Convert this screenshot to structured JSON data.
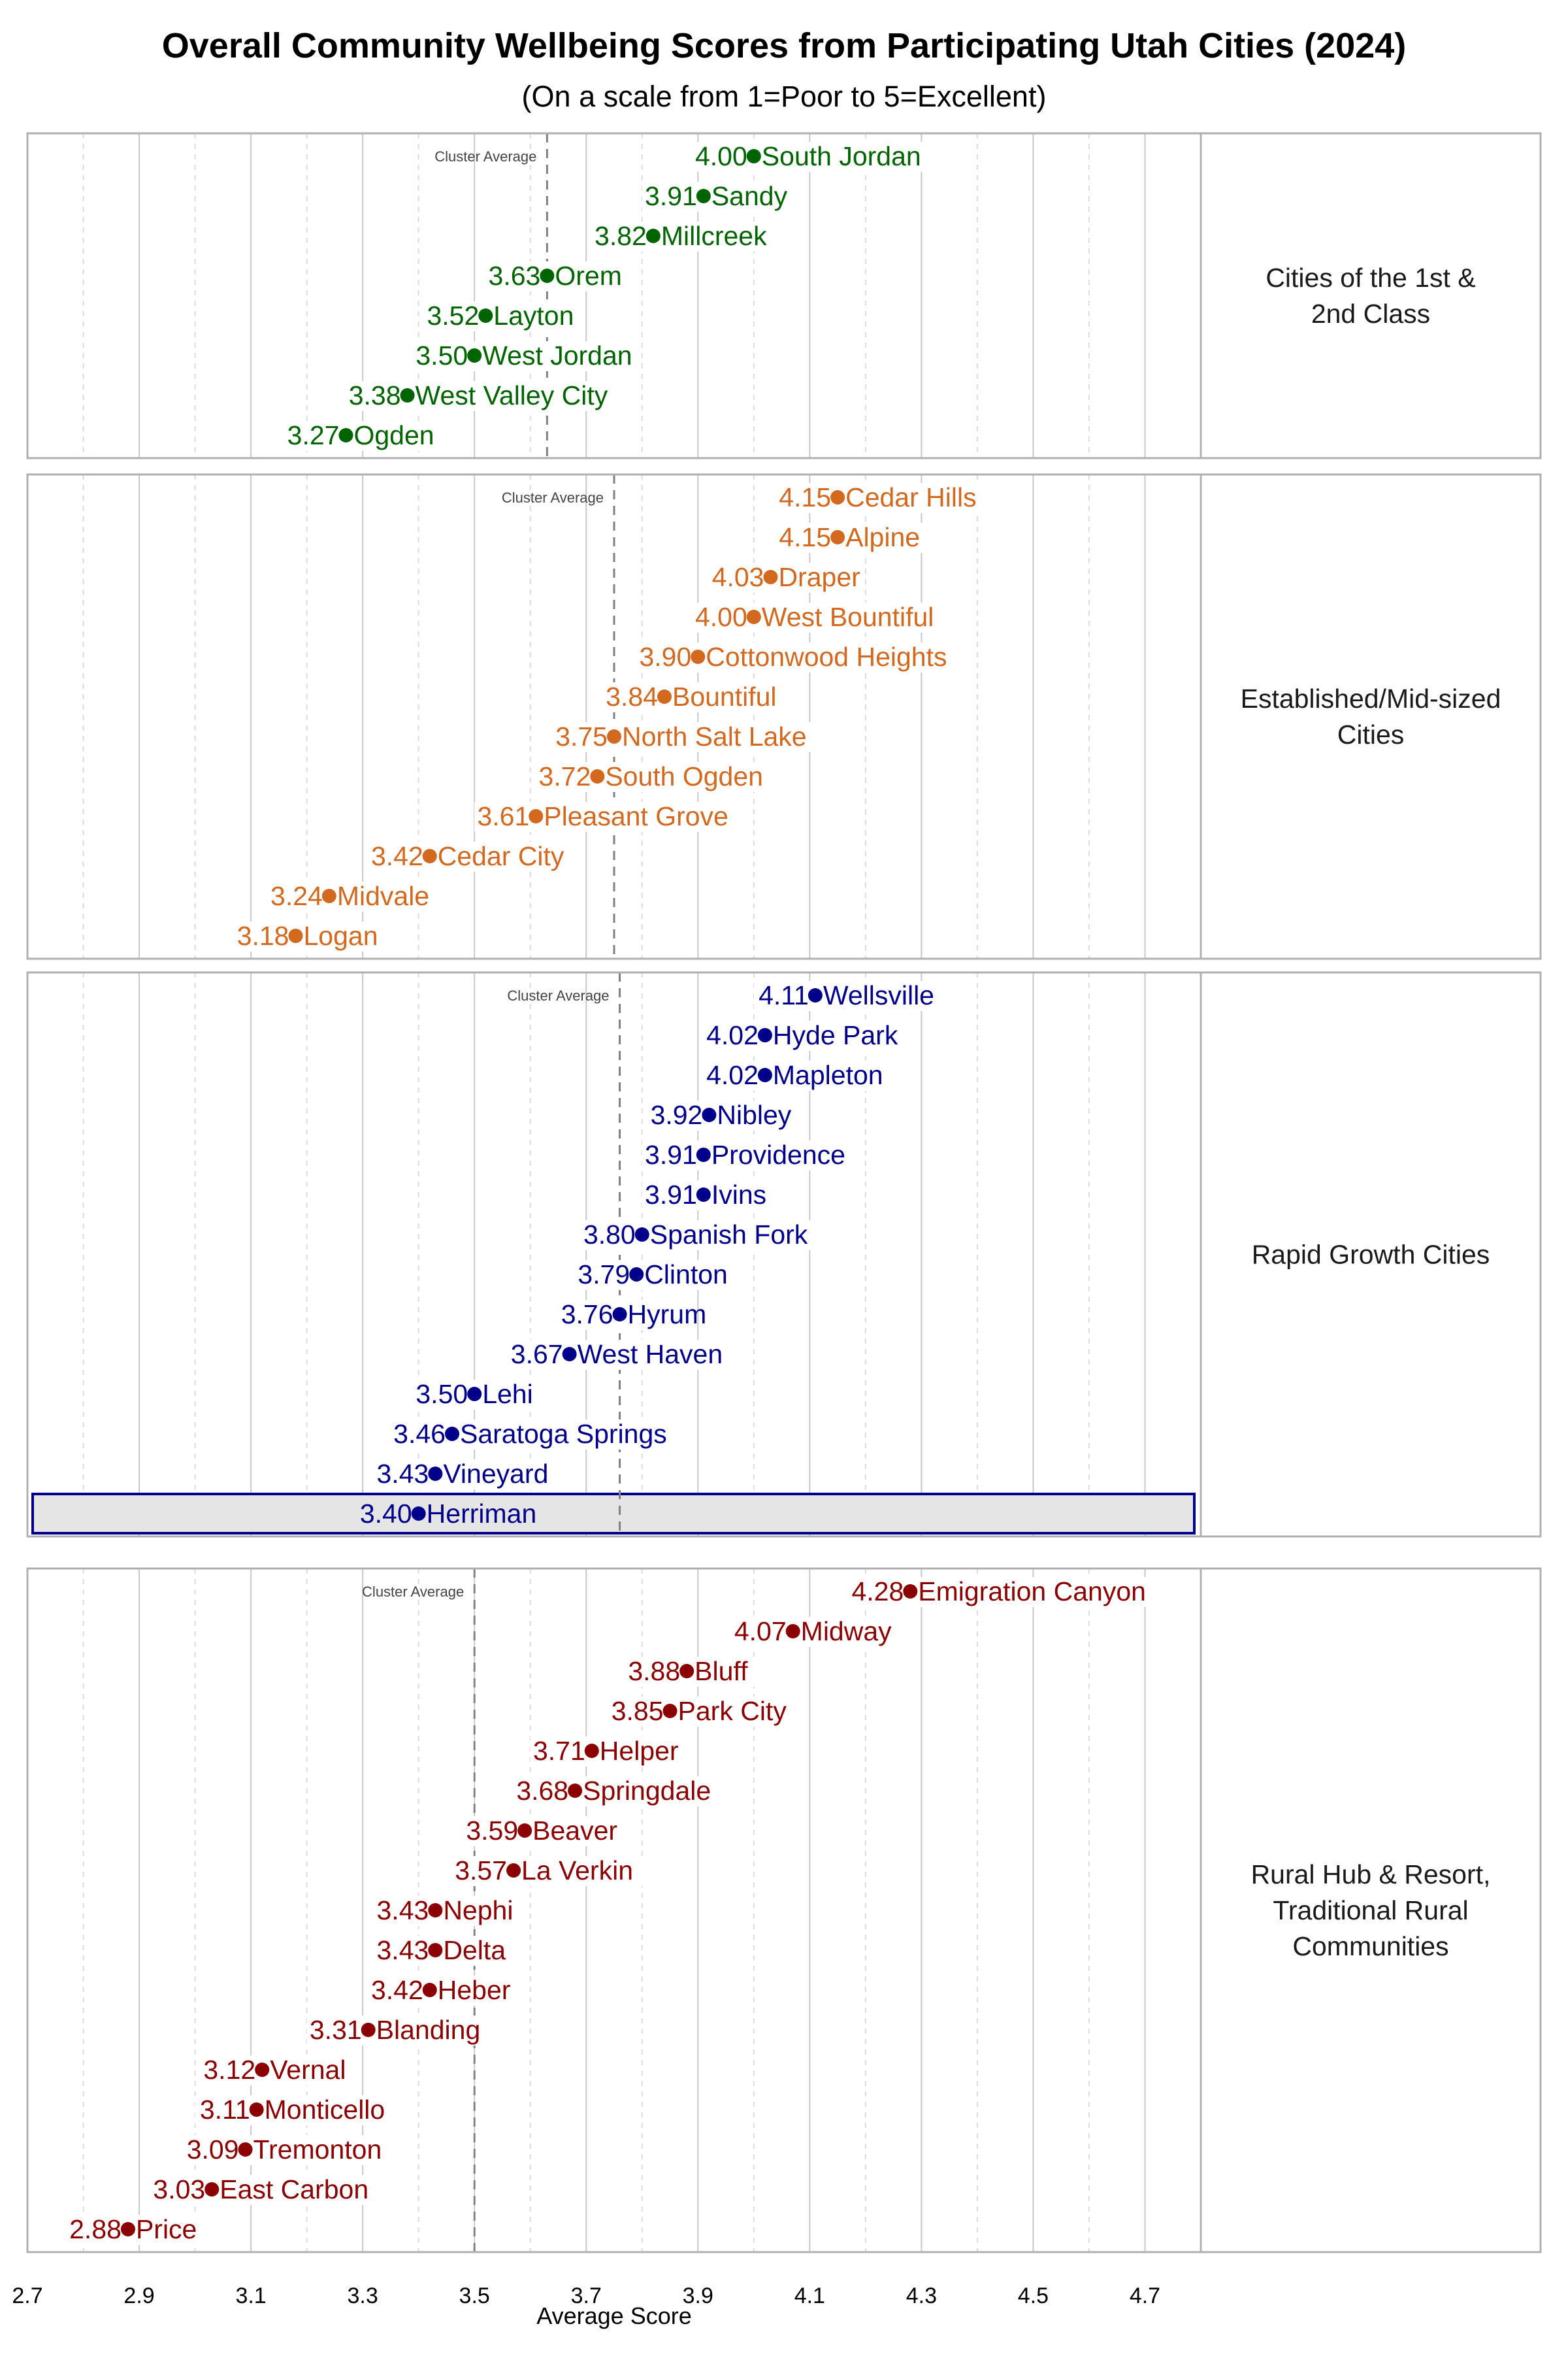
{
  "chart_data": {
    "type": "dot",
    "title": "Overall Community Wellbeing Scores from Participating Utah Cities (2024)",
    "subtitle": "(On a scale from 1=Poor to 5=Excellent)",
    "xlabel": "Average Score",
    "xlim": [
      2.7,
      4.8
    ],
    "xticks": [
      "2.7",
      "2.9",
      "3.1",
      "3.3",
      "3.5",
      "3.7",
      "3.9",
      "4.1",
      "4.3",
      "4.5",
      "4.7"
    ],
    "grid": true,
    "reference_label": "Cluster Average",
    "highlight": "Herriman",
    "highlight_colors": {
      "fill": "#e5e5e5",
      "border": "#00008B"
    },
    "panels": [
      {
        "name": "Cities of the 1st & 2nd Class",
        "name_lines": [
          "Cities of the 1st &",
          "2nd Class"
        ],
        "color": "#006400",
        "cluster_average": 3.63,
        "cities": [
          "South Jordan",
          "Sandy",
          "Millcreek",
          "Orem",
          "Layton",
          "West Jordan",
          "West Valley City",
          "Ogden"
        ],
        "values": [
          4.0,
          3.91,
          3.82,
          3.63,
          3.52,
          3.5,
          3.38,
          3.27
        ]
      },
      {
        "name": "Established/Mid-sized Cities",
        "name_lines": [
          "Established/Mid-sized",
          "Cities"
        ],
        "color": "#D2691E",
        "cluster_average": 3.75,
        "cities": [
          "Cedar Hills",
          "Alpine",
          "Draper",
          "West Bountiful",
          "Cottonwood Heights",
          "Bountiful",
          "North Salt Lake",
          "South Ogden",
          "Pleasant Grove",
          "Cedar City",
          "Midvale",
          "Logan"
        ],
        "values": [
          4.15,
          4.15,
          4.03,
          4.0,
          3.9,
          3.84,
          3.75,
          3.72,
          3.61,
          3.42,
          3.24,
          3.18
        ]
      },
      {
        "name": "Rapid Growth Cities",
        "name_lines": [
          "Rapid Growth Cities"
        ],
        "color": "#00008B",
        "cluster_average": 3.76,
        "cities": [
          "Wellsville",
          "Hyde Park",
          "Mapleton",
          "Nibley",
          "Providence",
          "Ivins",
          "Spanish Fork",
          "Clinton",
          "Hyrum",
          "West Haven",
          "Lehi",
          "Saratoga Springs",
          "Vineyard",
          "Herriman"
        ],
        "values": [
          4.11,
          4.02,
          4.02,
          3.92,
          3.91,
          3.91,
          3.8,
          3.79,
          3.76,
          3.67,
          3.5,
          3.46,
          3.43,
          3.4
        ]
      },
      {
        "name": "Rural Hub & Resort, Traditional Rural Communities",
        "name_lines": [
          "Rural Hub & Resort,",
          "Traditional Rural",
          "Communities"
        ],
        "color": "#8B0000",
        "cluster_average": 3.5,
        "cities": [
          "Emigration Canyon",
          "Midway",
          "Bluff",
          "Park City",
          "Helper",
          "Springdale",
          "Beaver",
          "La Verkin",
          "Nephi",
          "Delta",
          "Heber",
          "Blanding",
          "Vernal",
          "Monticello",
          "Tremonton",
          "East Carbon",
          "Price"
        ],
        "values": [
          4.28,
          4.07,
          3.88,
          3.85,
          3.71,
          3.68,
          3.59,
          3.57,
          3.43,
          3.43,
          3.42,
          3.31,
          3.12,
          3.11,
          3.09,
          3.03,
          2.88
        ]
      }
    ]
  }
}
